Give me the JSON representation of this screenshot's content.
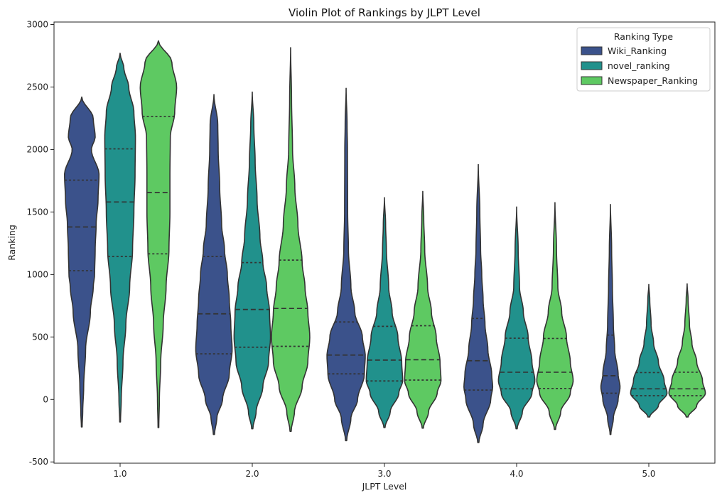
{
  "chart_data": {
    "type": "violin",
    "title": "Violin Plot of Rankings by JLPT Level",
    "xlabel": "JLPT Level",
    "ylabel": "Ranking",
    "categories": [
      "1.0",
      "2.0",
      "3.0",
      "4.0",
      "5.0"
    ],
    "ylim": [
      -510,
      3020
    ],
    "yticks": [
      -500,
      0,
      500,
      1000,
      1500,
      2000,
      2500,
      3000
    ],
    "inner": "quartile",
    "legend": {
      "title": "Ranking Type",
      "position": "top-right"
    },
    "colors": {
      "Wiki_Ranking": "#3b528b",
      "novel_ranking": "#21918c",
      "Newspaper_Ranking": "#5ec962",
      "outline": "#333333"
    },
    "series": [
      {
        "name": "Wiki_Ranking",
        "violins": [
          {
            "category": "1.0",
            "min": -220,
            "max": 2420,
            "q1": 1030,
            "median": 1380,
            "q3": 1755,
            "profile": [
              [
                -220,
                0.02
              ],
              [
                -100,
                0.05
              ],
              [
                100,
                0.1
              ],
              [
                400,
                0.2
              ],
              [
                700,
                0.45
              ],
              [
                900,
                0.6
              ],
              [
                1000,
                0.67
              ],
              [
                1200,
                0.7
              ],
              [
                1400,
                0.75
              ],
              [
                1600,
                0.85
              ],
              [
                1800,
                0.9
              ],
              [
                2000,
                0.5
              ],
              [
                2100,
                0.7
              ],
              [
                2250,
                0.6
              ],
              [
                2420,
                0.0
              ]
            ]
          },
          {
            "category": "2.0",
            "min": -280,
            "max": 2440,
            "q1": 365,
            "median": 685,
            "q3": 1145,
            "profile": [
              [
                -280,
                0.03
              ],
              [
                -150,
                0.15
              ],
              [
                0,
                0.45
              ],
              [
                200,
                0.8
              ],
              [
                400,
                0.95
              ],
              [
                600,
                0.88
              ],
              [
                800,
                0.8
              ],
              [
                1000,
                0.7
              ],
              [
                1200,
                0.55
              ],
              [
                1400,
                0.4
              ],
              [
                1700,
                0.3
              ],
              [
                2000,
                0.22
              ],
              [
                2200,
                0.2
              ],
              [
                2440,
                0.0
              ]
            ]
          },
          {
            "category": "3.0",
            "min": -330,
            "max": 2490,
            "q1": 205,
            "median": 355,
            "q3": 620,
            "profile": [
              [
                -330,
                0.03
              ],
              [
                -150,
                0.25
              ],
              [
                0,
                0.6
              ],
              [
                200,
                0.95
              ],
              [
                350,
                1.0
              ],
              [
                500,
                0.85
              ],
              [
                700,
                0.45
              ],
              [
                900,
                0.25
              ],
              [
                1200,
                0.12
              ],
              [
                1500,
                0.08
              ],
              [
                2000,
                0.07
              ],
              [
                2200,
                0.05
              ],
              [
                2490,
                0.0
              ]
            ]
          },
          {
            "category": "4.0",
            "min": -345,
            "max": 1880,
            "q1": 75,
            "median": 310,
            "q3": 648,
            "profile": [
              [
                -345,
                0.03
              ],
              [
                -200,
                0.25
              ],
              [
                0,
                0.65
              ],
              [
                100,
                0.75
              ],
              [
                200,
                0.7
              ],
              [
                400,
                0.5
              ],
              [
                600,
                0.35
              ],
              [
                800,
                0.25
              ],
              [
                1000,
                0.18
              ],
              [
                1200,
                0.12
              ],
              [
                1500,
                0.08
              ],
              [
                1880,
                0.0
              ]
            ]
          },
          {
            "category": "5.0",
            "min": -280,
            "max": 1560,
            "q1": 50,
            "median": 190,
            "q3": 515,
            "profile": [
              [
                -280,
                0.02
              ],
              [
                -150,
                0.15
              ],
              [
                0,
                0.4
              ],
              [
                100,
                0.5
              ],
              [
                200,
                0.4
              ],
              [
                400,
                0.22
              ],
              [
                600,
                0.15
              ],
              [
                900,
                0.1
              ],
              [
                1200,
                0.06
              ],
              [
                1560,
                0.0
              ]
            ]
          }
        ]
      },
      {
        "name": "novel_ranking",
        "violins": [
          {
            "category": "1.0",
            "min": -180,
            "max": 2770,
            "q1": 1145,
            "median": 1580,
            "q3": 2005,
            "profile": [
              [
                -180,
                0.02
              ],
              [
                0,
                0.06
              ],
              [
                300,
                0.15
              ],
              [
                600,
                0.3
              ],
              [
                900,
                0.5
              ],
              [
                1200,
                0.65
              ],
              [
                1500,
                0.72
              ],
              [
                1800,
                0.78
              ],
              [
                2100,
                0.8
              ],
              [
                2300,
                0.72
              ],
              [
                2500,
                0.45
              ],
              [
                2650,
                0.2
              ],
              [
                2770,
                0.0
              ]
            ]
          },
          {
            "category": "2.0",
            "min": -235,
            "max": 2460,
            "q1": 418,
            "median": 720,
            "q3": 1095,
            "profile": [
              [
                -235,
                0.03
              ],
              [
                -100,
                0.2
              ],
              [
                100,
                0.55
              ],
              [
                300,
                0.85
              ],
              [
                500,
                0.95
              ],
              [
                700,
                0.9
              ],
              [
                900,
                0.75
              ],
              [
                1100,
                0.55
              ],
              [
                1300,
                0.4
              ],
              [
                1600,
                0.25
              ],
              [
                1900,
                0.15
              ],
              [
                2200,
                0.08
              ],
              [
                2460,
                0.0
              ]
            ]
          },
          {
            "category": "3.0",
            "min": -225,
            "max": 1615,
            "q1": 148,
            "median": 315,
            "q3": 585,
            "profile": [
              [
                -225,
                0.03
              ],
              [
                -100,
                0.3
              ],
              [
                50,
                0.75
              ],
              [
                150,
                0.95
              ],
              [
                300,
                0.9
              ],
              [
                500,
                0.7
              ],
              [
                700,
                0.4
              ],
              [
                900,
                0.22
              ],
              [
                1200,
                0.1
              ],
              [
                1400,
                0.06
              ],
              [
                1615,
                0.0
              ]
            ]
          },
          {
            "category": "4.0",
            "min": -235,
            "max": 1540,
            "q1": 85,
            "median": 218,
            "q3": 490,
            "profile": [
              [
                -235,
                0.03
              ],
              [
                -100,
                0.3
              ],
              [
                50,
                0.8
              ],
              [
                150,
                0.95
              ],
              [
                300,
                0.8
              ],
              [
                500,
                0.6
              ],
              [
                700,
                0.35
              ],
              [
                900,
                0.15
              ],
              [
                1200,
                0.08
              ],
              [
                1540,
                0.0
              ]
            ]
          },
          {
            "category": "5.0",
            "min": -140,
            "max": 920,
            "q1": 30,
            "median": 85,
            "q3": 215,
            "profile": [
              [
                -140,
                0.05
              ],
              [
                -50,
                0.5
              ],
              [
                50,
                0.95
              ],
              [
                150,
                0.8
              ],
              [
                300,
                0.5
              ],
              [
                450,
                0.25
              ],
              [
                600,
                0.12
              ],
              [
                800,
                0.05
              ],
              [
                920,
                0.0
              ]
            ]
          }
        ]
      },
      {
        "name": "Newspaper_Ranking",
        "violins": [
          {
            "category": "1.0",
            "min": -225,
            "max": 2870,
            "q1": 1165,
            "median": 1655,
            "q3": 2265,
            "profile": [
              [
                -225,
                0.02
              ],
              [
                0,
                0.05
              ],
              [
                300,
                0.12
              ],
              [
                600,
                0.25
              ],
              [
                900,
                0.4
              ],
              [
                1200,
                0.55
              ],
              [
                1500,
                0.6
              ],
              [
                1800,
                0.6
              ],
              [
                2100,
                0.62
              ],
              [
                2300,
                0.85
              ],
              [
                2500,
                0.95
              ],
              [
                2700,
                0.7
              ],
              [
                2870,
                0.0
              ]
            ]
          },
          {
            "category": "2.0",
            "min": -255,
            "max": 2815,
            "q1": 425,
            "median": 728,
            "q3": 1115,
            "profile": [
              [
                -255,
                0.03
              ],
              [
                -100,
                0.2
              ],
              [
                100,
                0.6
              ],
              [
                300,
                0.9
              ],
              [
                500,
                1.0
              ],
              [
                700,
                0.9
              ],
              [
                900,
                0.75
              ],
              [
                1100,
                0.6
              ],
              [
                1400,
                0.38
              ],
              [
                1700,
                0.22
              ],
              [
                2000,
                0.1
              ],
              [
                2400,
                0.05
              ],
              [
                2815,
                0.0
              ]
            ]
          },
          {
            "category": "3.0",
            "min": -230,
            "max": 1665,
            "q1": 155,
            "median": 318,
            "q3": 590,
            "profile": [
              [
                -230,
                0.03
              ],
              [
                -100,
                0.3
              ],
              [
                50,
                0.75
              ],
              [
                150,
                0.95
              ],
              [
                300,
                0.9
              ],
              [
                500,
                0.7
              ],
              [
                700,
                0.45
              ],
              [
                900,
                0.25
              ],
              [
                1200,
                0.1
              ],
              [
                1450,
                0.05
              ],
              [
                1665,
                0.0
              ]
            ]
          },
          {
            "category": "4.0",
            "min": -240,
            "max": 1575,
            "q1": 88,
            "median": 218,
            "q3": 488,
            "profile": [
              [
                -240,
                0.03
              ],
              [
                -100,
                0.3
              ],
              [
                50,
                0.8
              ],
              [
                150,
                0.95
              ],
              [
                300,
                0.8
              ],
              [
                500,
                0.6
              ],
              [
                700,
                0.35
              ],
              [
                900,
                0.15
              ],
              [
                1200,
                0.08
              ],
              [
                1575,
                0.0
              ]
            ]
          },
          {
            "category": "5.0",
            "min": -140,
            "max": 925,
            "q1": 30,
            "median": 85,
            "q3": 218,
            "profile": [
              [
                -140,
                0.05
              ],
              [
                -50,
                0.5
              ],
              [
                50,
                0.95
              ],
              [
                150,
                0.8
              ],
              [
                300,
                0.5
              ],
              [
                450,
                0.25
              ],
              [
                600,
                0.12
              ],
              [
                800,
                0.05
              ],
              [
                925,
                0.0
              ]
            ]
          }
        ]
      }
    ]
  }
}
